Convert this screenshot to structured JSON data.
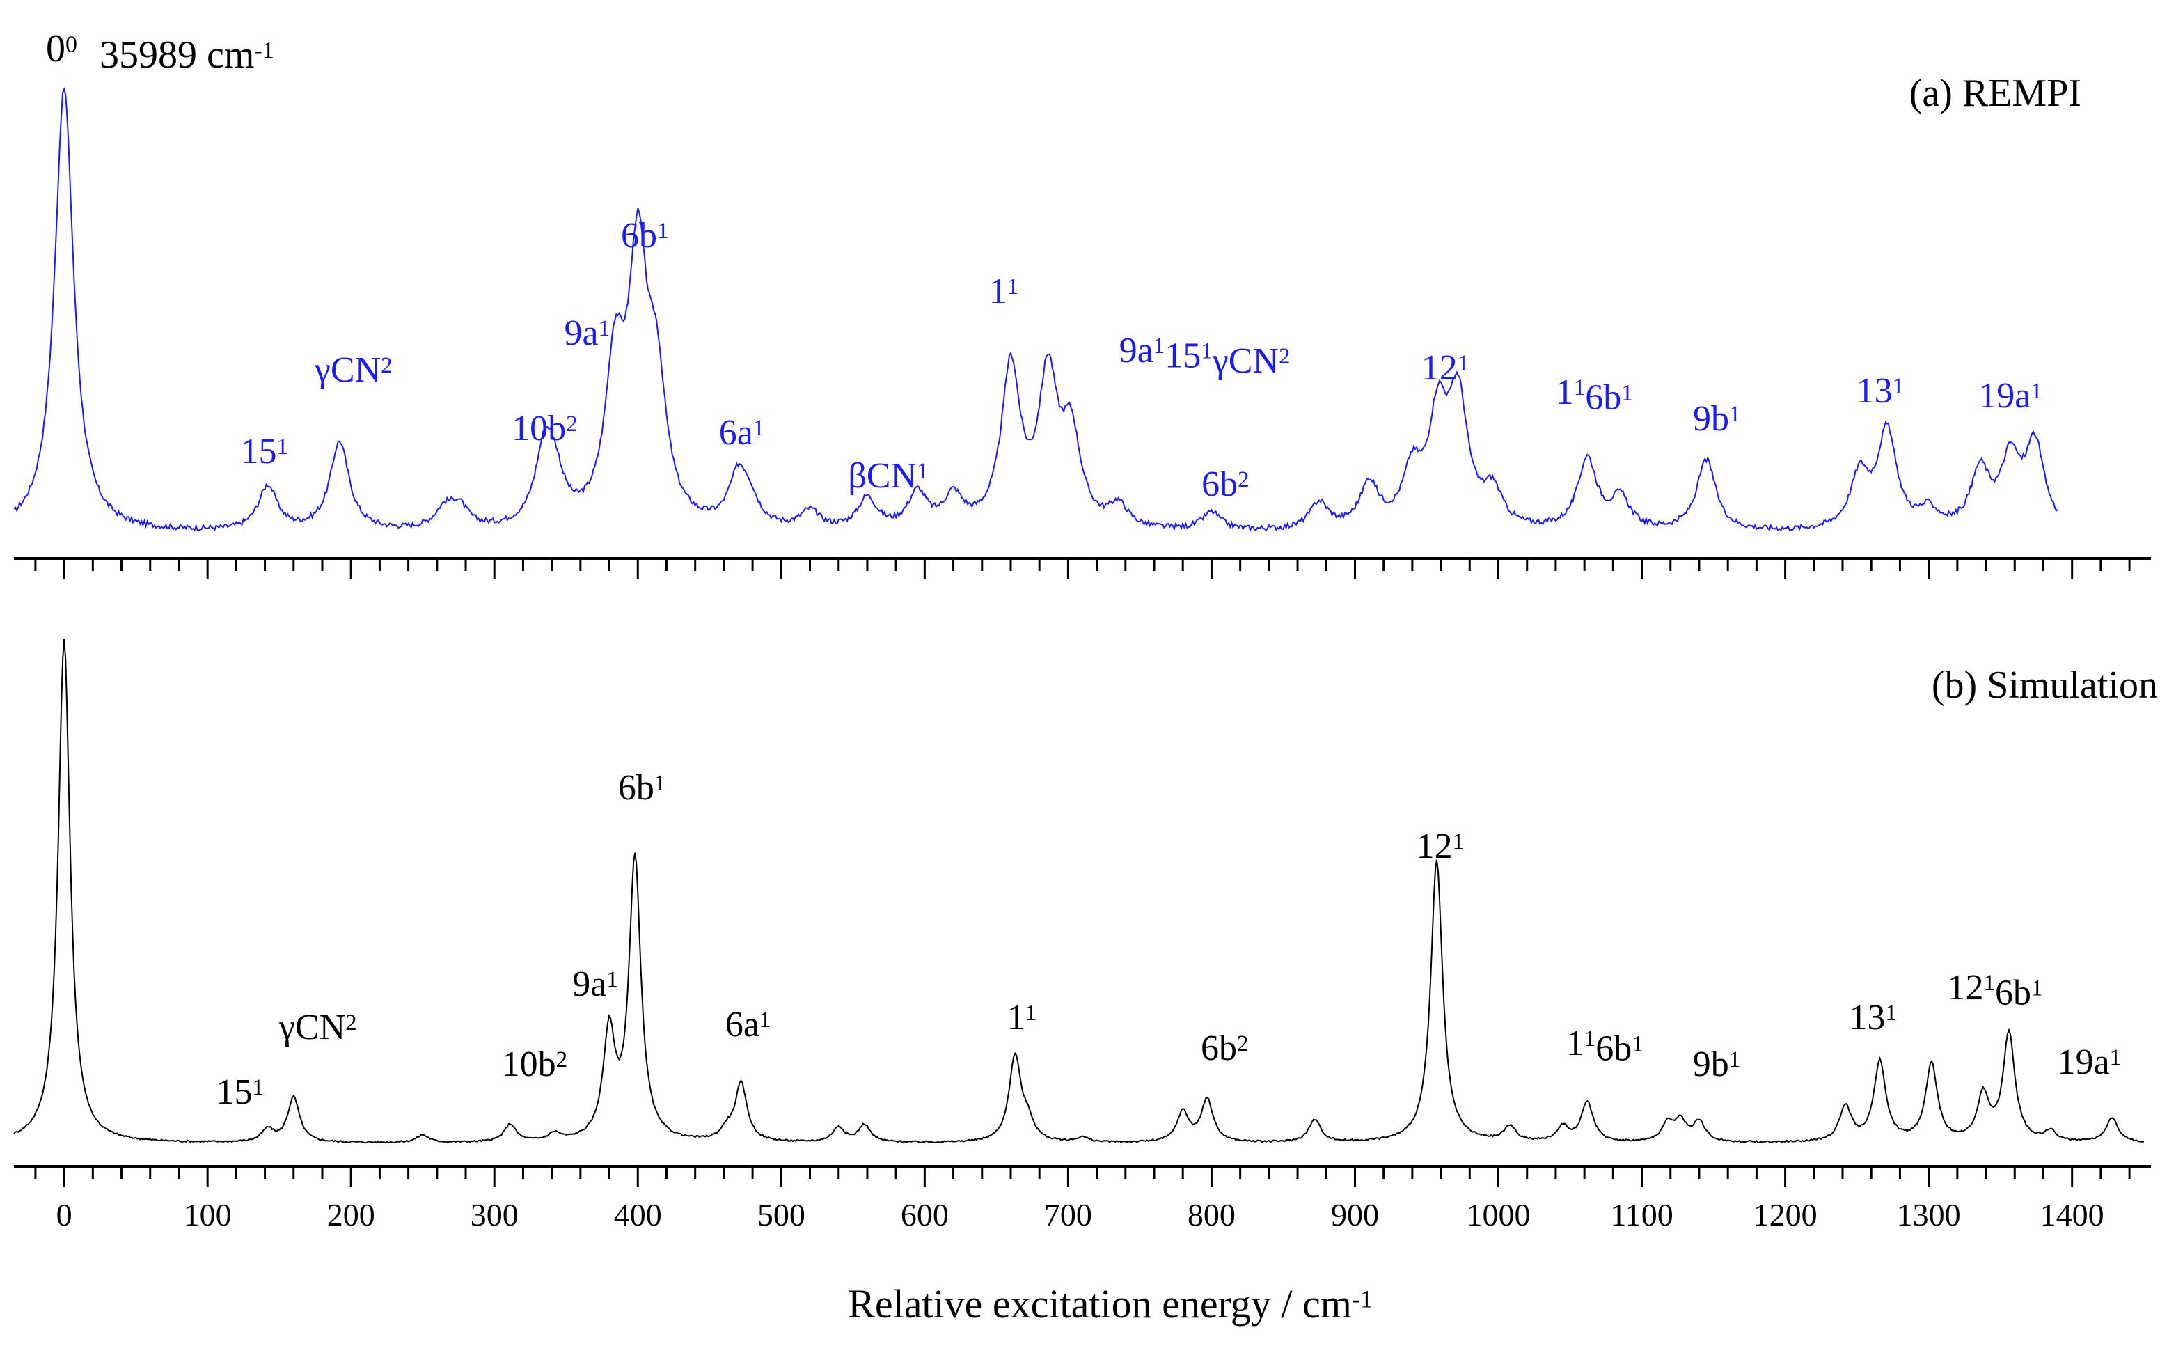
{
  "chart_data": [
    {
      "panel": "a",
      "type": "line",
      "title": "(a) REMPI",
      "color": "#1a1aff",
      "origin_label": {
        "base": "0",
        "sup": "0",
        "text": "35989 cm",
        "unit_sup": "-1"
      },
      "xlim": [
        -35,
        1455
      ],
      "grid": false,
      "series": [
        {
          "name": "REMPI",
          "peaks": [
            {
              "x": 0,
              "y": 100
            },
            {
              "x": 142,
              "y": 10
            },
            {
              "x": 192,
              "y": 20
            },
            {
              "x": 265,
              "y": 4
            },
            {
              "x": 275,
              "y": 5
            },
            {
              "x": 335,
              "y": 16
            },
            {
              "x": 342,
              "y": 9
            },
            {
              "x": 384,
              "y": 34
            },
            {
              "x": 400,
              "y": 57
            },
            {
              "x": 413,
              "y": 29
            },
            {
              "x": 470,
              "y": 11
            },
            {
              "x": 478,
              "y": 5
            },
            {
              "x": 520,
              "y": 4
            },
            {
              "x": 560,
              "y": 7
            },
            {
              "x": 595,
              "y": 8
            },
            {
              "x": 620,
              "y": 7
            },
            {
              "x": 660,
              "y": 36
            },
            {
              "x": 686,
              "y": 33
            },
            {
              "x": 702,
              "y": 20
            },
            {
              "x": 735,
              "y": 5
            },
            {
              "x": 800,
              "y": 4
            },
            {
              "x": 875,
              "y": 6
            },
            {
              "x": 910,
              "y": 10
            },
            {
              "x": 940,
              "y": 12
            },
            {
              "x": 958,
              "y": 24
            },
            {
              "x": 972,
              "y": 28
            },
            {
              "x": 996,
              "y": 8
            },
            {
              "x": 1062,
              "y": 16
            },
            {
              "x": 1085,
              "y": 7
            },
            {
              "x": 1145,
              "y": 16
            },
            {
              "x": 1252,
              "y": 12
            },
            {
              "x": 1271,
              "y": 22
            },
            {
              "x": 1300,
              "y": 4
            },
            {
              "x": 1336,
              "y": 13
            },
            {
              "x": 1357,
              "y": 15
            },
            {
              "x": 1374,
              "y": 19
            }
          ]
        }
      ],
      "labels": [
        {
          "x": 142,
          "y": 10,
          "base": "15",
          "sup": "1"
        },
        {
          "x": 192,
          "y": 20,
          "base": "γCN",
          "sup": "2"
        },
        {
          "x": 335,
          "y": 16,
          "base": "10b",
          "sup": "2"
        },
        {
          "x": 384,
          "y": 34,
          "base": "9a",
          "sup": "1"
        },
        {
          "x": 400,
          "y": 57,
          "base": "6b",
          "sup": "1"
        },
        {
          "x": 470,
          "y": 11,
          "base": "6a",
          "sup": "1"
        },
        {
          "x": 560,
          "y": 7,
          "base": "βCN",
          "sup": "1"
        },
        {
          "x": 660,
          "y": 36,
          "base": "1",
          "sup": "1"
        },
        {
          "x": 686,
          "y": 33,
          "parts": [
            {
              "base": "9a",
              "sup": "1"
            },
            {
              "base": "15",
              "sup": "1"
            },
            {
              "base": "γCN",
              "sup": "2"
            }
          ]
        },
        {
          "x": 800,
          "y": 4,
          "base": "6b",
          "sup": "2"
        },
        {
          "x": 958,
          "y": 28,
          "base": "12",
          "sup": "1"
        },
        {
          "x": 1062,
          "y": 16,
          "parts": [
            {
              "base": "1",
              "sup": "1"
            },
            {
              "base": "6b",
              "sup": "1"
            }
          ]
        },
        {
          "x": 1145,
          "y": 16,
          "base": "9b",
          "sup": "1"
        },
        {
          "x": 1271,
          "y": 22,
          "base": "13",
          "sup": "1"
        },
        {
          "x": 1374,
          "y": 19,
          "base": "19a",
          "sup": "1"
        }
      ]
    },
    {
      "panel": "b",
      "type": "line",
      "title": "(b) Simulation",
      "color": "#000000",
      "xlim": [
        -35,
        1455
      ],
      "grid": false,
      "xlabel": {
        "text": "Relative excitation energy / cm",
        "sup": "-1"
      },
      "xticks": [
        0,
        100,
        200,
        300,
        400,
        500,
        600,
        700,
        800,
        900,
        1000,
        1100,
        1200,
        1300,
        1400
      ],
      "series": [
        {
          "name": "Simulation",
          "peaks": [
            {
              "x": 0,
              "y": 100
            },
            {
              "x": 142,
              "y": 2.5
            },
            {
              "x": 160,
              "y": 9
            },
            {
              "x": 250,
              "y": 1.5
            },
            {
              "x": 311,
              "y": 3.5
            },
            {
              "x": 342,
              "y": 1.5
            },
            {
              "x": 380,
              "y": 21
            },
            {
              "x": 398,
              "y": 56
            },
            {
              "x": 462,
              "y": 2
            },
            {
              "x": 472,
              "y": 11.5
            },
            {
              "x": 540,
              "y": 3
            },
            {
              "x": 558,
              "y": 3.5
            },
            {
              "x": 663,
              "y": 17
            },
            {
              "x": 672,
              "y": 3.5
            },
            {
              "x": 710,
              "y": 1
            },
            {
              "x": 780,
              "y": 6
            },
            {
              "x": 797,
              "y": 8.5
            },
            {
              "x": 872,
              "y": 4.5
            },
            {
              "x": 957,
              "y": 56
            },
            {
              "x": 1008,
              "y": 3
            },
            {
              "x": 1045,
              "y": 3
            },
            {
              "x": 1062,
              "y": 8
            },
            {
              "x": 1118,
              "y": 3.5
            },
            {
              "x": 1127,
              "y": 4
            },
            {
              "x": 1140,
              "y": 4
            },
            {
              "x": 1242,
              "y": 7
            },
            {
              "x": 1266,
              "y": 16
            },
            {
              "x": 1302,
              "y": 15.5
            },
            {
              "x": 1338,
              "y": 9
            },
            {
              "x": 1356,
              "y": 21.5
            },
            {
              "x": 1385,
              "y": 2
            },
            {
              "x": 1428,
              "y": 5
            }
          ]
        }
      ],
      "labels": [
        {
          "x": 142,
          "y": 9,
          "base": "15",
          "sup": "1"
        },
        {
          "x": 160,
          "y": 9,
          "base": "γCN",
          "sup": "2"
        },
        {
          "x": 311,
          "y": 9,
          "base": "10b",
          "sup": "2"
        },
        {
          "x": 380,
          "y": 21,
          "base": "9a",
          "sup": "1"
        },
        {
          "x": 398,
          "y": 56,
          "base": "6b",
          "sup": "1"
        },
        {
          "x": 472,
          "y": 11.5,
          "base": "6a",
          "sup": "1"
        },
        {
          "x": 663,
          "y": 17,
          "base": "1",
          "sup": "1"
        },
        {
          "x": 797,
          "y": 8.5,
          "base": "6b",
          "sup": "2"
        },
        {
          "x": 957,
          "y": 56,
          "base": "12",
          "sup": "1"
        },
        {
          "x": 1062,
          "y": 8,
          "parts": [
            {
              "base": "1",
              "sup": "1"
            },
            {
              "base": "6b",
              "sup": "1"
            }
          ]
        },
        {
          "x": 1140,
          "y": 4,
          "base": "9b",
          "sup": "1"
        },
        {
          "x": 1266,
          "y": 16,
          "base": "13",
          "sup": "1"
        },
        {
          "x": 1356,
          "y": 21.5,
          "parts": [
            {
              "base": "12",
              "sup": "1"
            },
            {
              "base": "6b",
              "sup": "1"
            }
          ]
        },
        {
          "x": 1395,
          "y": 8,
          "base": "19a",
          "sup": "1"
        }
      ]
    }
  ]
}
